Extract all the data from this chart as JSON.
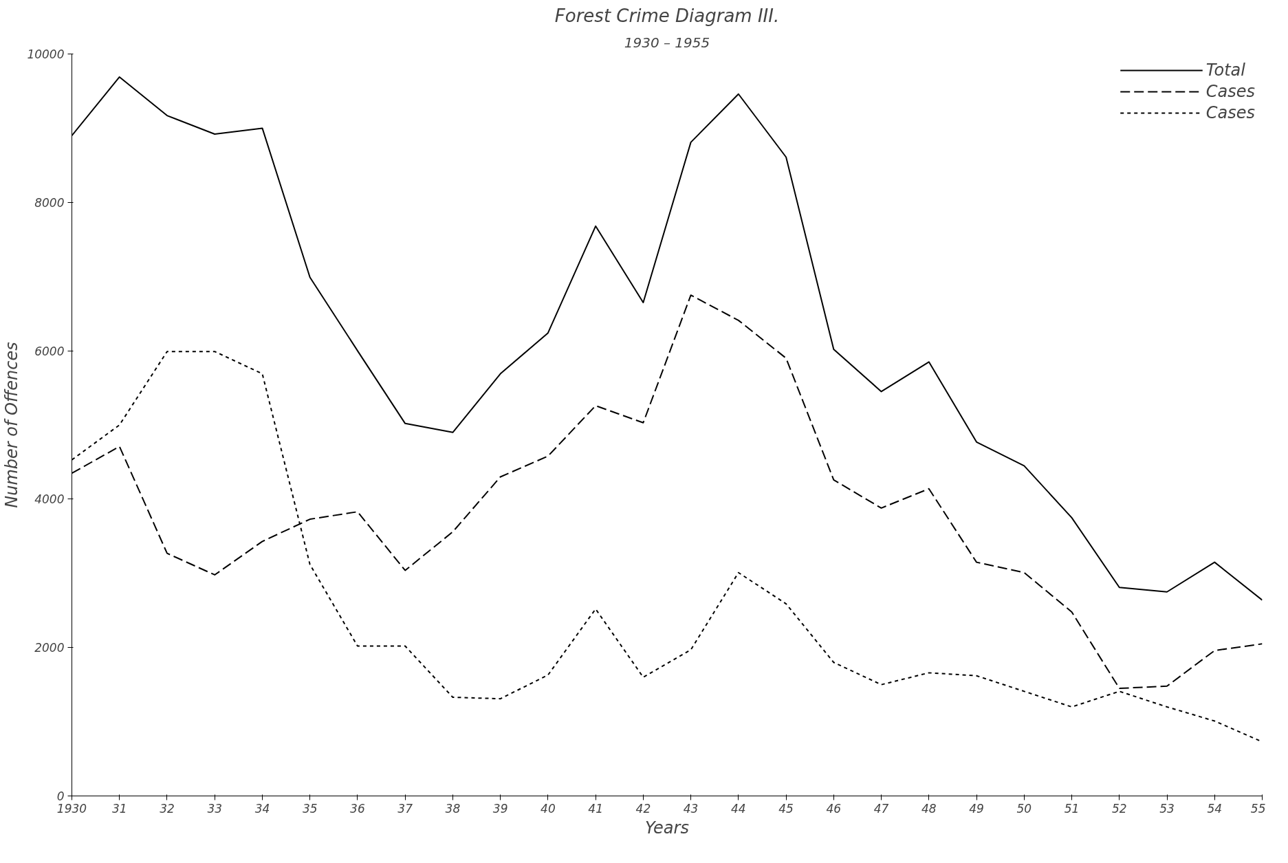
{
  "chart_data": {
    "type": "line",
    "title": "Forest Crime Diagram III.",
    "subtitle": "1930 – 1955",
    "xlabel": "Years",
    "ylabel": "Number of Offences",
    "x": [
      1930,
      1931,
      1932,
      1933,
      1934,
      1935,
      1936,
      1937,
      1938,
      1939,
      1940,
      1941,
      1942,
      1943,
      1944,
      1945,
      1946,
      1947,
      1948,
      1949,
      1950,
      1951,
      1952,
      1953,
      1954,
      1955
    ],
    "series": [
      {
        "name": "Total",
        "color": "#000000",
        "line_style": "solid",
        "values": [
          8900,
          9690,
          9170,
          8920,
          9000,
          6990,
          6000,
          5020,
          4900,
          5690,
          6240,
          7680,
          6650,
          8810,
          9460,
          8610,
          6020,
          5450,
          5850,
          4770,
          4450,
          3750,
          2810,
          2750,
          3150,
          2640
        ]
      },
      {
        "name": "Cases",
        "color": "#000000",
        "line_style": "dashed",
        "values": [
          4350,
          4710,
          3270,
          2980,
          3430,
          3730,
          3830,
          3040,
          3560,
          4300,
          4580,
          5260,
          5030,
          6750,
          6410,
          5900,
          4260,
          3880,
          4140,
          3150,
          3010,
          2480,
          1450,
          1480,
          1960,
          2050
        ]
      },
      {
        "name": "Cases",
        "color": "#000000",
        "line_style": "dotted",
        "values": [
          4530,
          5000,
          5990,
          5990,
          5690,
          3120,
          2020,
          2020,
          1330,
          1310,
          1630,
          2520,
          1600,
          1970,
          3010,
          2590,
          1800,
          1500,
          1660,
          1620,
          1410,
          1200,
          1410,
          1200,
          1010,
          730
        ]
      }
    ],
    "xlim": [
      1930,
      1955
    ],
    "xticks": [
      {
        "value": 1930,
        "label": "1930"
      },
      {
        "value": 1931,
        "label": "31"
      },
      {
        "value": 1932,
        "label": "32"
      },
      {
        "value": 1933,
        "label": "33"
      },
      {
        "value": 1934,
        "label": "34"
      },
      {
        "value": 1935,
        "label": "35"
      },
      {
        "value": 1936,
        "label": "36"
      },
      {
        "value": 1937,
        "label": "37"
      },
      {
        "value": 1938,
        "label": "38"
      },
      {
        "value": 1939,
        "label": "39"
      },
      {
        "value": 1940,
        "label": "40"
      },
      {
        "value": 1941,
        "label": "41"
      },
      {
        "value": 1942,
        "label": "42"
      },
      {
        "value": 1943,
        "label": "43"
      },
      {
        "value": 1944,
        "label": "44"
      },
      {
        "value": 1945,
        "label": "45"
      },
      {
        "value": 1946,
        "label": "46"
      },
      {
        "value": 1947,
        "label": "47"
      },
      {
        "value": 1948,
        "label": "48"
      },
      {
        "value": 1949,
        "label": "49"
      },
      {
        "value": 1950,
        "label": "50"
      },
      {
        "value": 1951,
        "label": "51"
      },
      {
        "value": 1952,
        "label": "52"
      },
      {
        "value": 1953,
        "label": "53"
      },
      {
        "value": 1954,
        "label": "54"
      },
      {
        "value": 1955,
        "label": "55"
      }
    ],
    "ylim": [
      0,
      10000
    ],
    "yticks": [
      0,
      2000,
      4000,
      6000,
      8000,
      10000
    ],
    "grid": false,
    "legend": "top right",
    "marker": "none"
  }
}
